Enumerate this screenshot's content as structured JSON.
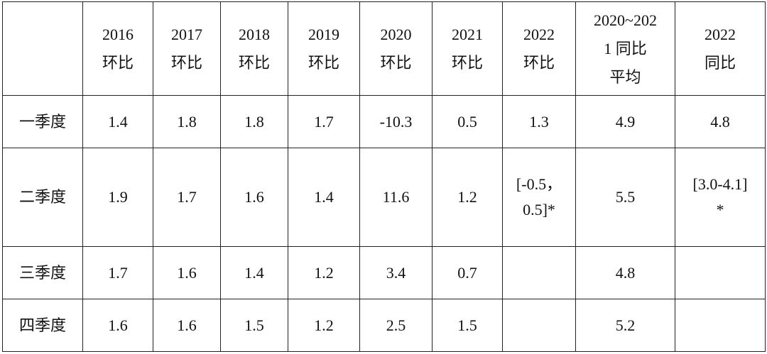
{
  "header": {
    "corner": "",
    "cols": [
      [
        "2016",
        "环比"
      ],
      [
        "2017",
        "环比"
      ],
      [
        "2018",
        "环比"
      ],
      [
        "2019",
        "环比"
      ],
      [
        "2020",
        "环比"
      ],
      [
        "2021",
        "环比"
      ],
      [
        "2022",
        "环比"
      ],
      [
        "2020~202",
        "1 同比",
        "平均"
      ],
      [
        "2022",
        "同比"
      ]
    ]
  },
  "rows": [
    {
      "label": "一季度",
      "cells": [
        [
          "1.4"
        ],
        [
          "1.8"
        ],
        [
          "1.8"
        ],
        [
          "1.7"
        ],
        [
          "-10.3"
        ],
        [
          "0.5"
        ],
        [
          "1.3"
        ],
        [
          "4.9"
        ],
        [
          "4.8"
        ]
      ]
    },
    {
      "label": "二季度",
      "cells": [
        [
          "1.9"
        ],
        [
          "1.7"
        ],
        [
          "1.6"
        ],
        [
          "1.4"
        ],
        [
          "11.6"
        ],
        [
          "1.2"
        ],
        [
          "[-0.5，",
          "0.5]*"
        ],
        [
          "5.5"
        ],
        [
          "[3.0-4.1]",
          "*"
        ]
      ]
    },
    {
      "label": "三季度",
      "cells": [
        [
          "1.7"
        ],
        [
          "1.6"
        ],
        [
          "1.4"
        ],
        [
          "1.2"
        ],
        [
          "3.4"
        ],
        [
          "0.7"
        ],
        [
          ""
        ],
        [
          "4.8"
        ],
        [
          ""
        ]
      ]
    },
    {
      "label": "四季度",
      "cells": [
        [
          "1.6"
        ],
        [
          "1.6"
        ],
        [
          "1.5"
        ],
        [
          "1.2"
        ],
        [
          "2.5"
        ],
        [
          "1.5"
        ],
        [
          ""
        ],
        [
          "5.2"
        ],
        [
          ""
        ]
      ]
    }
  ]
}
